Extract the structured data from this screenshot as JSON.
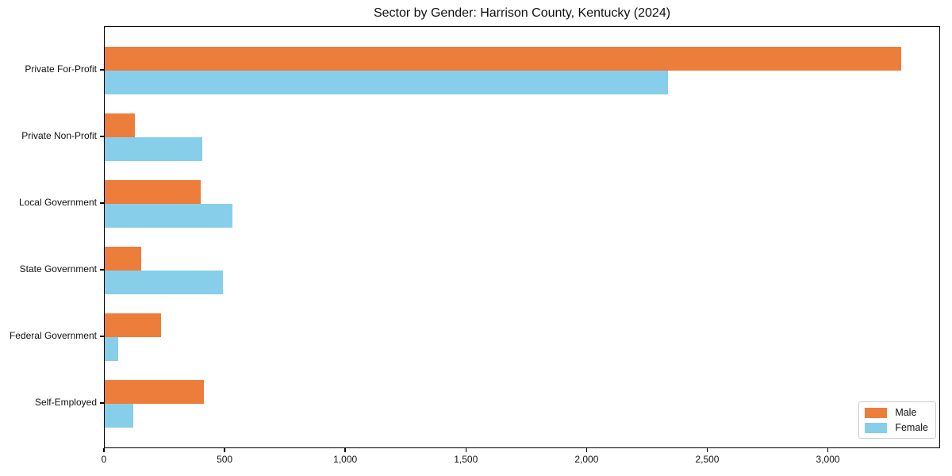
{
  "figure": {
    "background": "#ffffff",
    "axis_color": "#000000"
  },
  "chart_data": {
    "type": "bar",
    "orientation": "horizontal",
    "title": "Sector by Gender: Harrison County, Kentucky (2024)",
    "categories": [
      "Private For-Profit",
      "Private Non-Profit",
      "Local Government",
      "State Government",
      "Federal Government",
      "Self-Employed"
    ],
    "series": [
      {
        "name": "Male",
        "color": "#ED7D3B",
        "values": [
          3300,
          124,
          399,
          152,
          232,
          410
        ]
      },
      {
        "name": "Female",
        "color": "#87CEEB",
        "values": [
          2333,
          403,
          530,
          489,
          57,
          118
        ]
      }
    ],
    "xlabel": "",
    "ylabel": "",
    "xlim": [
      0,
      3465
    ],
    "xticks": [
      0,
      500,
      1000,
      1500,
      2000,
      2500,
      3000
    ],
    "xtick_labels": [
      "0",
      "500",
      "1,000",
      "1,500",
      "2,000",
      "2,500",
      "3,000"
    ],
    "grid": false,
    "legend": {
      "position": "lower right",
      "entries": [
        "Male",
        "Female"
      ]
    }
  }
}
